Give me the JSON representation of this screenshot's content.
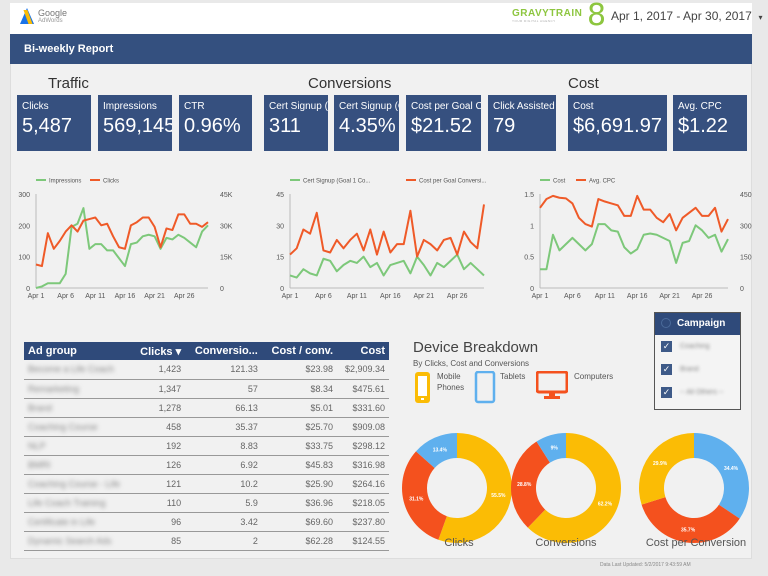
{
  "header": {
    "logo_text": "Google",
    "logo_sub": "AdWords",
    "brand": "GRAVYTRAIN",
    "brand_sub": "YOUR DIGITAL AGENCY",
    "brand_mark": "8",
    "date_range": "Apr 1, 2017 - Apr 30, 2017",
    "date_caret": "▾"
  },
  "report_title": "Bi-weekly Report",
  "sections": {
    "traffic": "Traffic",
    "conversions": "Conversions",
    "cost": "Cost"
  },
  "kpis": [
    {
      "label": "Clicks",
      "value": "5,487"
    },
    {
      "label": "Impressions",
      "value": "569,145"
    },
    {
      "label": "CTR",
      "value": "0.96%"
    },
    {
      "label": "Cert Signup (",
      "value": "311"
    },
    {
      "label": "Cert Signup (G",
      "value": "4.35%"
    },
    {
      "label": "Cost per Goal C",
      "value": "$21.52"
    },
    {
      "label": "Click Assisted",
      "value": "79"
    },
    {
      "label": "Cost",
      "value": "$6,691.97"
    },
    {
      "label": "Avg. CPC",
      "value": "$1.22"
    }
  ],
  "colors": {
    "navy": "#34507f",
    "green": "#7dc87a",
    "orange": "#ef5a28",
    "mobile": "#fbbc05",
    "tablet": "#5fb0ee",
    "computer": "#f4511e"
  },
  "chart_data": [
    {
      "type": "line",
      "x_ticks": [
        "Apr 1",
        "Apr 6",
        "Apr 11",
        "Apr 16",
        "Apr 21",
        "Apr 26"
      ],
      "left_axis": {
        "ticks": [
          "0",
          "100",
          "200",
          "300"
        ],
        "range": [
          0,
          300
        ]
      },
      "right_axis": {
        "ticks": [
          "0",
          "15K",
          "30K",
          "45K"
        ],
        "range": [
          0,
          45000
        ]
      },
      "series": [
        {
          "name": "Impressions",
          "axis": "right",
          "color": "#7dc87a",
          "values": [
            0,
            750,
            2250,
            2250,
            2250,
            6750,
            29250,
            30750,
            38250,
            18750,
            21000,
            21000,
            18000,
            18000,
            14250,
            10500,
            21000,
            21750,
            24750,
            25500,
            24750,
            18750,
            24000,
            23250,
            25500,
            24000,
            21750,
            19500,
            27000,
            30000
          ]
        },
        {
          "name": "Clicks",
          "axis": "left",
          "color": "#ef5a28",
          "values": [
            75,
            70,
            175,
            125,
            150,
            180,
            200,
            180,
            215,
            220,
            225,
            200,
            205,
            165,
            130,
            125,
            200,
            210,
            225,
            225,
            195,
            130,
            190,
            185,
            235,
            235,
            205,
            205,
            195,
            210
          ]
        }
      ]
    },
    {
      "type": "line",
      "x_ticks": [
        "Apr 1",
        "Apr 6",
        "Apr 11",
        "Apr 16",
        "Apr 21",
        "Apr 26"
      ],
      "left_axis": {
        "ticks": [
          "0",
          "15",
          "30",
          "45"
        ],
        "range": [
          0,
          45
        ]
      },
      "series": [
        {
          "name": "Cert Signup (Goal 1 Co...",
          "axis": "left",
          "color": "#7dc87a",
          "values": [
            6,
            5,
            9,
            7,
            6,
            14,
            13,
            8,
            11,
            13,
            12,
            15,
            10,
            12,
            6,
            11,
            12,
            13,
            7,
            15,
            11,
            6,
            12,
            10,
            13,
            16,
            9,
            12,
            9,
            6
          ]
        },
        {
          "name": "Cost per Goal Conversi...",
          "axis": "left",
          "color": "#ef5a28",
          "values": [
            16,
            19,
            28,
            26,
            36,
            18,
            17,
            23,
            19,
            23,
            26,
            18,
            28,
            16,
            27,
            17,
            21,
            21,
            37,
            15,
            23,
            21,
            18,
            23,
            24,
            16,
            27,
            22,
            19,
            40
          ]
        }
      ]
    },
    {
      "type": "line",
      "x_ticks": [
        "Apr 1",
        "Apr 6",
        "Apr 11",
        "Apr 16",
        "Apr 21",
        "Apr 26"
      ],
      "left_axis": {
        "ticks": [
          "0",
          "0.5",
          "1",
          "1.5"
        ],
        "range": [
          0,
          1.5
        ]
      },
      "right_axis": {
        "ticks": [
          "0",
          "150",
          "300",
          "450"
        ],
        "range": [
          0,
          450
        ]
      },
      "series": [
        {
          "name": "Cost",
          "axis": "right",
          "color": "#7dc87a",
          "values": [
            90,
            90,
            255,
            180,
            210,
            240,
            210,
            180,
            210,
            306,
            306,
            276,
            270,
            195,
            165,
            186,
            255,
            261,
            255,
            240,
            225,
            120,
            216,
            225,
            300,
            276,
            240,
            255,
            174,
            234
          ]
        },
        {
          "name": "Avg. CPC",
          "axis": "left",
          "color": "#ef5a28",
          "values": [
            1.28,
            1.42,
            1.47,
            1.44,
            1.43,
            1.35,
            1.12,
            1.02,
            0.98,
            1.42,
            1.38,
            1.35,
            1.32,
            1.15,
            1.15,
            1.47,
            1.25,
            1.25,
            1.12,
            1.05,
            1.18,
            0.92,
            1.12,
            1.2,
            1.28,
            1.15,
            1.15,
            1.28,
            0.9,
            1.1
          ]
        }
      ]
    },
    {
      "type": "pie",
      "title": "Clicks",
      "slices": [
        {
          "device": "Mobile Phones",
          "value": 55.5,
          "label": "55.5%"
        },
        {
          "device": "Computers",
          "value": 31.1,
          "label": "31.1%"
        },
        {
          "device": "Tablets",
          "value": 13.4,
          "label": "13.4%"
        }
      ]
    },
    {
      "type": "pie",
      "title": "Conversions",
      "slices": [
        {
          "device": "Mobile Phones",
          "value": 62.2,
          "label": "62.2%"
        },
        {
          "device": "Computers",
          "value": 28.8,
          "label": "28.8%"
        },
        {
          "device": "Tablets",
          "value": 9,
          "label": "9%"
        }
      ]
    },
    {
      "type": "pie",
      "title": "Cost per Conversion",
      "slices": [
        {
          "device": "Tablets",
          "value": 34.4,
          "label": "34.4%"
        },
        {
          "device": "Computers",
          "value": 35.7,
          "label": "35.7%"
        },
        {
          "device": "Mobile Phones",
          "value": 29.9,
          "label": "29.9%"
        }
      ]
    }
  ],
  "table": {
    "headers": [
      "Ad group",
      "Clicks ▾",
      "Conversio...",
      "Cost / conv.",
      "Cost"
    ],
    "rows": [
      [
        "Become a Life Coach",
        "1,423",
        "121.33",
        "$23.98",
        "$2,909.34"
      ],
      [
        "Remarketing",
        "1,347",
        "57",
        "$8.34",
        "$475.61"
      ],
      [
        "Brand",
        "1,278",
        "66.13",
        "$5.01",
        "$331.60"
      ],
      [
        "Coaching Course",
        "458",
        "35.37",
        "$25.70",
        "$909.08"
      ],
      [
        "NLP",
        "192",
        "8.83",
        "$33.75",
        "$298.12"
      ],
      [
        "BMRI",
        "126",
        "6.92",
        "$45.83",
        "$316.98"
      ],
      [
        "Coaching Course - Life",
        "121",
        "10.2",
        "$25.90",
        "$264.16"
      ],
      [
        "Life Coach Training",
        "110",
        "5.9",
        "$36.96",
        "$218.05"
      ],
      [
        "Certificate in Life",
        "96",
        "3.42",
        "$69.60",
        "$237.80"
      ],
      [
        "Dynamic Search Ads",
        "85",
        "2",
        "$62.28",
        "$124.55"
      ]
    ]
  },
  "device": {
    "title": "Device Breakdown",
    "subtitle": "By Clicks, Cost and Conversions",
    "legend": [
      "Mobile Phones",
      "Tablets",
      "Computers"
    ]
  },
  "campaign": {
    "title": "Campaign",
    "items": [
      "Coaching",
      "Brand",
      "-- All Others --"
    ]
  },
  "footer": "Data Last Updated: 5/2/2017 9:43:59 AM"
}
